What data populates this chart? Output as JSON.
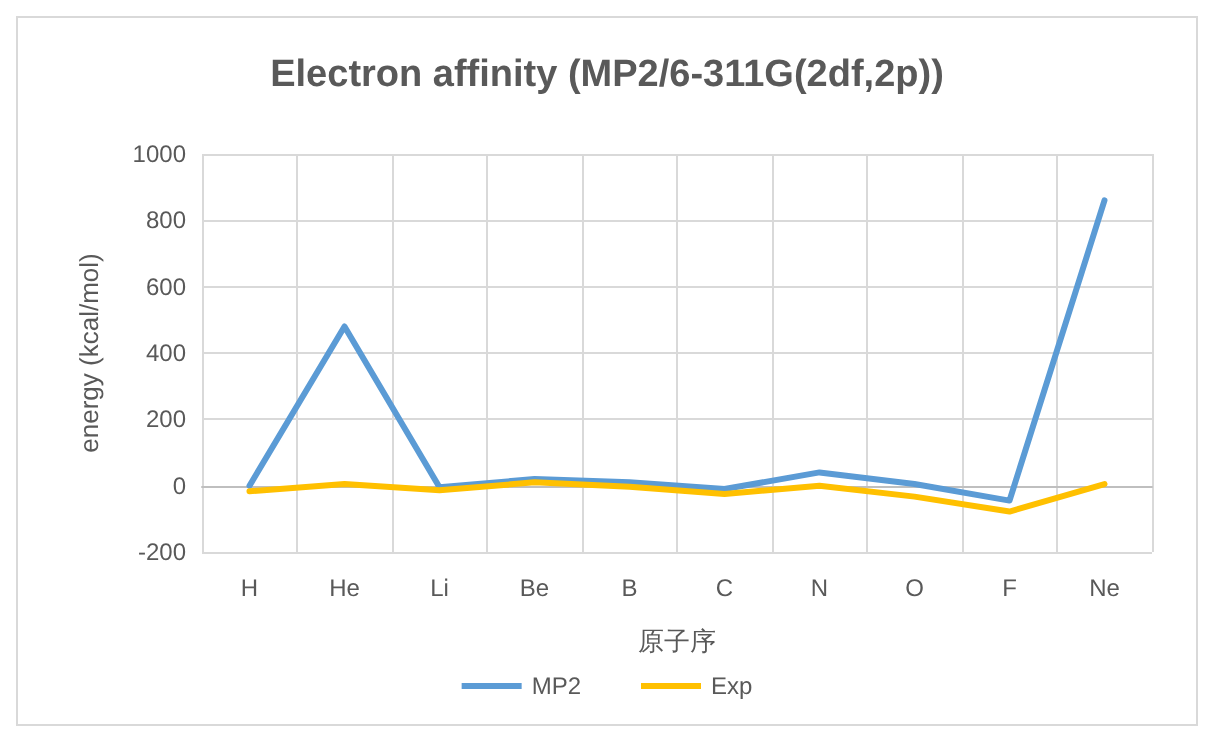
{
  "chart_data": {
    "type": "line",
    "title": "Electron affinity (MP2/6-311G(2df,2p))",
    "xlabel": "原子序",
    "ylabel": "energy (kcal/mol)",
    "categories": [
      "H",
      "He",
      "Li",
      "Be",
      "B",
      "C",
      "N",
      "O",
      "F",
      "Ne"
    ],
    "series": [
      {
        "name": "MP2",
        "color": "#5b9bd5",
        "values": [
          0,
          480,
          -5,
          20,
          10,
          -10,
          40,
          5,
          -45,
          860
        ]
      },
      {
        "name": "Exp",
        "color": "#ffc000",
        "values": [
          -17,
          5,
          -14,
          10,
          -3,
          -25,
          0,
          -33,
          -78,
          5
        ]
      }
    ],
    "ylim": [
      -200,
      1000
    ],
    "yticks": [
      -200,
      0,
      200,
      400,
      600,
      800,
      1000
    ],
    "grid": true,
    "legend": "bottom",
    "marker": "none",
    "line_style": "solid"
  }
}
